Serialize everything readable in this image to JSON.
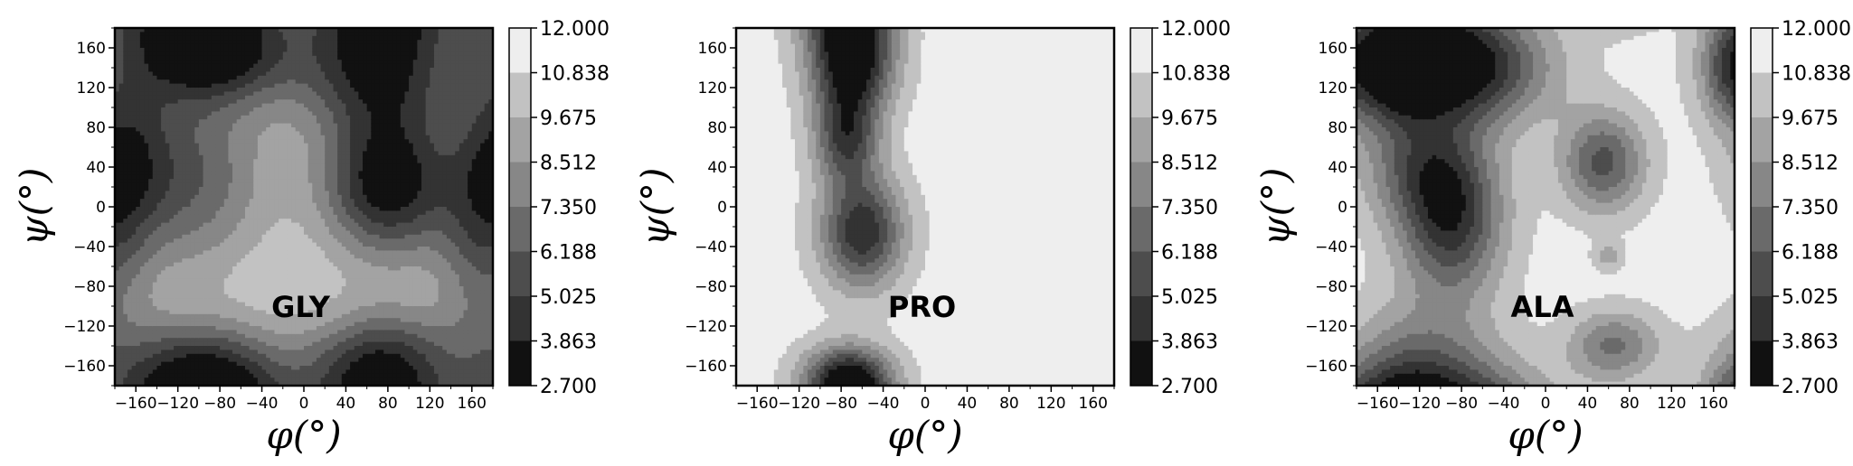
{
  "chart_data": [
    {
      "type": "heatmap",
      "label": "GLY",
      "xlabel": "φ(°)",
      "ylabel": "ψ(°)",
      "xlim": [
        -180,
        180
      ],
      "ylim": [
        -180,
        180
      ],
      "xticks": [
        "−160",
        "−120",
        "−80",
        "−40",
        "0",
        "40",
        "80",
        "120",
        "160"
      ],
      "yticks": [
        "160",
        "120",
        "80",
        "40",
        "0",
        "−40",
        "−80",
        "−120",
        "−160"
      ],
      "colorbar_levels": [
        "12.000",
        "10.838",
        "9.675",
        "8.512",
        "7.350",
        "6.188",
        "5.025",
        "3.863",
        "2.700"
      ],
      "vmin": 2.7,
      "vmax": 12.0,
      "background": 11.4,
      "wells": [
        {
          "x": 80,
          "y": 25,
          "depth": 8.6,
          "sx": 45,
          "sy": 55
        },
        {
          "x": 70,
          "y": 130,
          "depth": 5.5,
          "sx": 60,
          "sy": 40
        },
        {
          "x": 75,
          "y": -160,
          "depth": 7.2,
          "sx": 50,
          "sy": 40
        },
        {
          "x": -110,
          "y": 30,
          "depth": 5.2,
          "sx": 55,
          "sy": 70
        },
        {
          "x": -90,
          "y": 150,
          "depth": 6.6,
          "sx": 55,
          "sy": 35
        },
        {
          "x": -100,
          "y": -160,
          "depth": 6.2,
          "sx": 60,
          "sy": 35
        },
        {
          "x": -170,
          "y": 60,
          "depth": 3.6,
          "sx": 30,
          "sy": 60
        },
        {
          "x": 170,
          "y": -40,
          "depth": 4.0,
          "sx": 30,
          "sy": 80
        }
      ]
    },
    {
      "type": "heatmap",
      "label": "PRO",
      "xlabel": "φ(°)",
      "ylabel": "ψ(°)",
      "xlim": [
        -180,
        180
      ],
      "ylim": [
        -180,
        180
      ],
      "xticks": [
        "−160",
        "−120",
        "−80",
        "−40",
        "0",
        "40",
        "80",
        "120",
        "160"
      ],
      "yticks": [
        "160",
        "120",
        "80",
        "40",
        "0",
        "−40",
        "−80",
        "−120",
        "−160"
      ],
      "colorbar_levels": [
        "12.000",
        "10.838",
        "9.675",
        "8.512",
        "7.350",
        "6.188",
        "5.025",
        "3.863",
        "2.700"
      ],
      "vmin": 2.7,
      "vmax": 12.0,
      "background": 11.4,
      "wells": [
        {
          "x": -70,
          "y": 145,
          "depth": 9.0,
          "sx": 28,
          "sy": 35
        },
        {
          "x": -75,
          "y": 70,
          "depth": 6.2,
          "sx": 22,
          "sy": 32
        },
        {
          "x": -60,
          "y": -25,
          "depth": 7.4,
          "sx": 28,
          "sy": 40
        },
        {
          "x": -75,
          "y": -170,
          "depth": 5.8,
          "sx": 30,
          "sy": 22
        }
      ]
    },
    {
      "type": "heatmap",
      "label": "ALA",
      "xlabel": "φ(°)",
      "ylabel": "ψ(°)",
      "xlim": [
        -180,
        180
      ],
      "ylim": [
        -180,
        180
      ],
      "xticks": [
        "−160",
        "−120",
        "−80",
        "−40",
        "0",
        "40",
        "80",
        "120",
        "160"
      ],
      "yticks": [
        "160",
        "120",
        "80",
        "40",
        "0",
        "−40",
        "−80",
        "−120",
        "−160"
      ],
      "colorbar_levels": [
        "12.000",
        "10.838",
        "9.675",
        "8.512",
        "7.350",
        "6.188",
        "5.025",
        "3.863",
        "2.700"
      ],
      "vmin": 2.7,
      "vmax": 12.0,
      "background": 11.4,
      "wells": [
        {
          "x": -80,
          "y": 140,
          "depth": 8.6,
          "sx": 55,
          "sy": 40
        },
        {
          "x": -150,
          "y": 140,
          "depth": 6.5,
          "sx": 35,
          "sy": 40
        },
        {
          "x": -90,
          "y": -15,
          "depth": 6.8,
          "sx": 35,
          "sy": 55
        },
        {
          "x": -120,
          "y": 40,
          "depth": 4.0,
          "sx": 40,
          "sy": 40
        },
        {
          "x": 55,
          "y": 45,
          "depth": 5.6,
          "sx": 28,
          "sy": 35
        },
        {
          "x": 65,
          "y": -140,
          "depth": 4.3,
          "sx": 30,
          "sy": 25
        },
        {
          "x": 60,
          "y": -50,
          "depth": 2.2,
          "sx": 10,
          "sy": 10
        },
        {
          "x": -120,
          "y": -150,
          "depth": 3.2,
          "sx": 50,
          "sy": 40
        },
        {
          "x": 170,
          "y": 140,
          "depth": 2.0,
          "sx": 15,
          "sy": 40
        }
      ]
    }
  ]
}
